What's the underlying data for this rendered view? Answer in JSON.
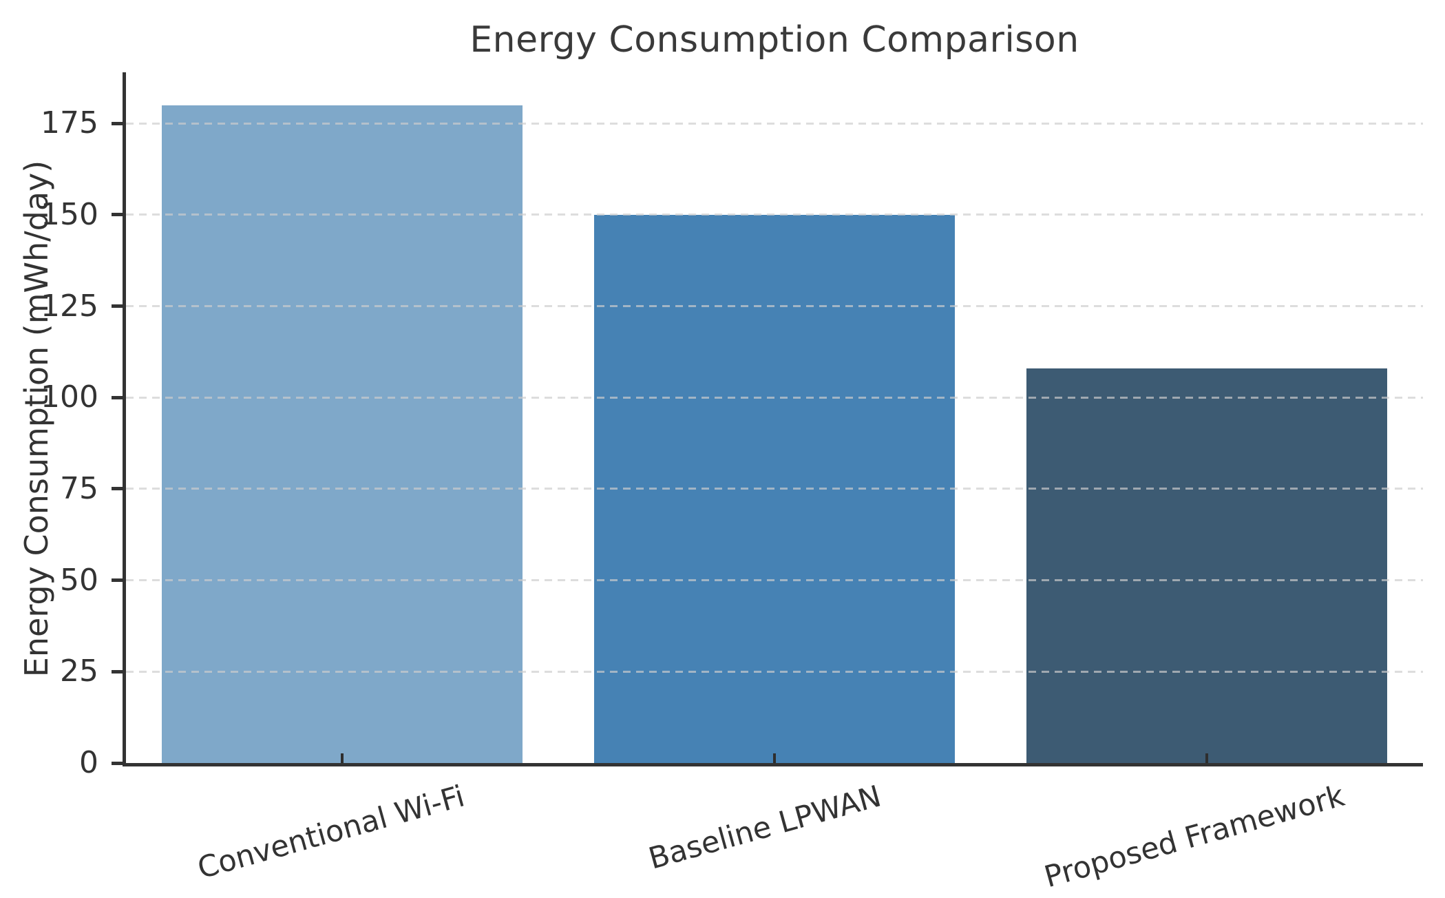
{
  "chart_data": {
    "type": "bar",
    "title": "Energy Consumption Comparison",
    "xlabel": "",
    "ylabel": "Energy Consumption (mWh/day)",
    "categories": [
      "Conventional Wi-Fi",
      "Baseline LPWAN",
      "Proposed Framework"
    ],
    "values": [
      180,
      150,
      108
    ],
    "bar_colors": [
      "#7FA8C9",
      "#4682B4",
      "#3D5B73"
    ],
    "yticks": [
      0,
      25,
      50,
      75,
      100,
      125,
      150,
      175
    ],
    "ylim": [
      0,
      189
    ],
    "grid": "horizontal-dashed-over-bars",
    "legend_position": "none",
    "x_tick_rotation_deg": 15.5,
    "bar_width_fraction": 0.835
  },
  "style": {
    "background": "#ffffff",
    "spine_color": "#333333",
    "grid_color": "#cdcdcd",
    "text_color": "#333333",
    "title_color": "#3a3a3a"
  }
}
